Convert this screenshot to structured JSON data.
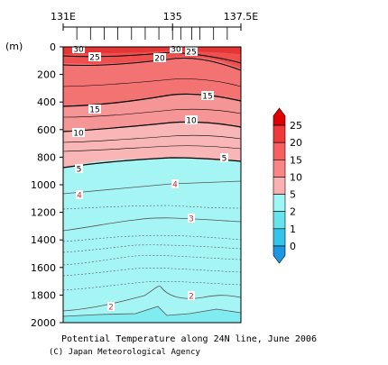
{
  "chart_data": {
    "type": "contour",
    "title": "Potential Temperature along 24N line, June 2006",
    "credit": "(C) Japan Meteorological Agency",
    "yunit": "(m)",
    "xticks": [
      "131E",
      "135",
      "137.5E"
    ],
    "x_tick_values": [
      131,
      135,
      137.5
    ],
    "xlim": [
      131,
      137.5
    ],
    "ylim": [
      0,
      2000
    ],
    "y_reversed": true,
    "yticks": [
      0,
      200,
      400,
      600,
      800,
      1000,
      1200,
      1400,
      1600,
      1800,
      2000
    ],
    "legend": {
      "placement": "right",
      "labels": [
        "25",
        "20",
        "15",
        "10",
        "5",
        "2",
        "1",
        "0"
      ],
      "levels": [
        30,
        25,
        20,
        15,
        10,
        5,
        2,
        1,
        0
      ],
      "colors": [
        "#e00000",
        "#f03a3a",
        "#f86060",
        "#f98585",
        "#fbb1b1",
        "#a0f5f5",
        "#66e4ee",
        "#33c4ea",
        "#1a98e2"
      ]
    },
    "isotherm_labels": [
      "30",
      "25",
      "20",
      "30",
      "25",
      "15",
      "15",
      "10",
      "10",
      "5",
      "5",
      "4",
      "4",
      "3",
      "2",
      "2"
    ],
    "isotherm_depths": {
      "30": 10,
      "25": 80,
      "20": 130,
      "15": 380,
      "10": 610,
      "5": 880,
      "4": 1020,
      "3": 1300,
      "2": 1920
    },
    "colors": {
      "warm_top": "#e63c3c",
      "warm_mid": "#f47878",
      "warm_low": "#f9b0b0",
      "cold": "#a6f5f5",
      "cold_deep": "#80ecf0"
    }
  }
}
